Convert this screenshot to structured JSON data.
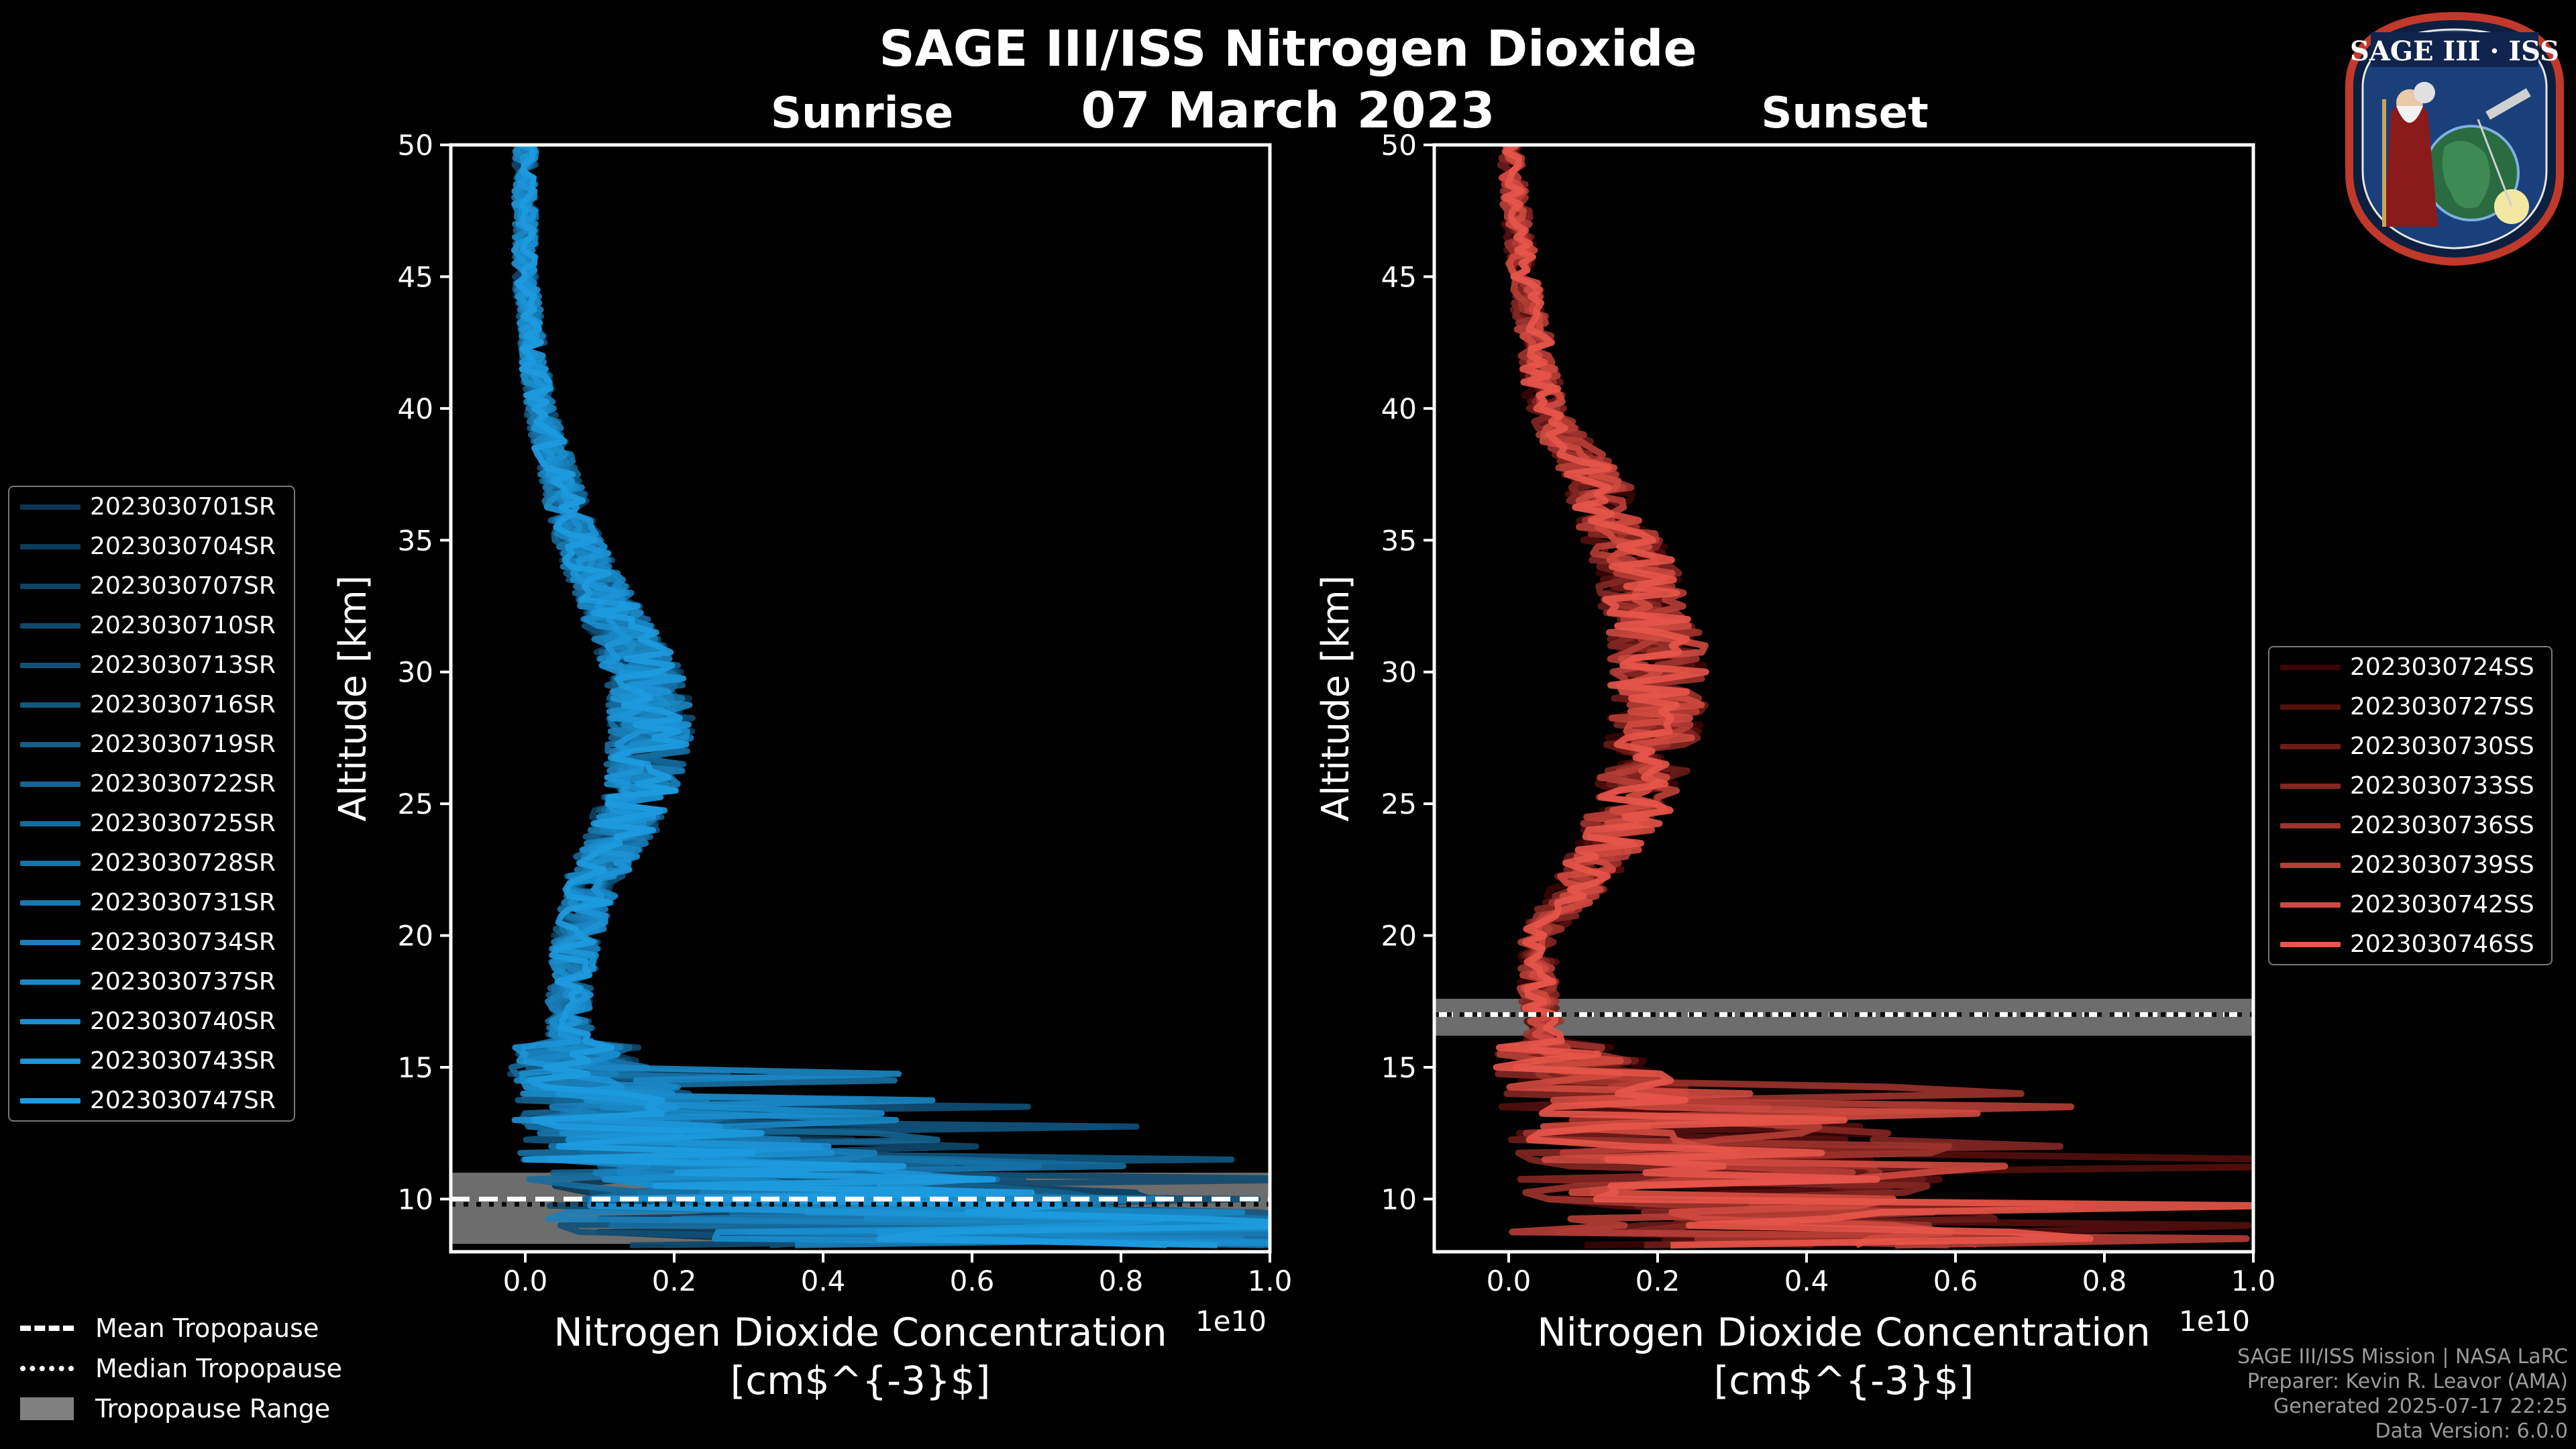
{
  "header": {
    "title": "SAGE III/ISS Nitrogen Dioxide",
    "date": "07 March 2023"
  },
  "logo": {
    "text": "SAGE III · ISS",
    "colors": {
      "ring": "#c0392b",
      "field": "#1b3f7a"
    }
  },
  "credits": [
    "SAGE III/ISS Mission | NASA LaRC",
    "Preparer: Kevin R. Leavor (AMA)",
    "Generated 2025-07-17 22:25",
    "Data Version: 6.0.0"
  ],
  "tropopause_legend": {
    "mean": "Mean Tropopause",
    "median": "Median Tropopause",
    "range": "Tropopause Range"
  },
  "chart_data": [
    {
      "type": "line",
      "title": "Sunrise",
      "xlabel": "Nitrogen Dioxide Concentration",
      "xunit": "[cm$^{-3}$]",
      "ylabel": "Altitude [km]",
      "x_scale_label": "1e10",
      "xlim": [
        -0.1,
        1.0
      ],
      "ylim": [
        8,
        50
      ],
      "xticks": [
        0.0,
        0.2,
        0.4,
        0.6,
        0.8,
        1.0
      ],
      "xtick_labels": [
        "0.0",
        "0.2",
        "0.4",
        "0.6",
        "0.8",
        "1.0"
      ],
      "yticks": [
        10,
        15,
        20,
        25,
        30,
        35,
        40,
        45,
        50
      ],
      "legend_position": "left",
      "color_dark": "#0b3552",
      "color_light": "#1e9be0",
      "tropopause": {
        "mean": 10.0,
        "median": 9.8,
        "range": [
          8.3,
          11.0
        ]
      },
      "profile_shape": [
        [
          50,
          0.0
        ],
        [
          45,
          0.0
        ],
        [
          40,
          0.02
        ],
        [
          35,
          0.07
        ],
        [
          32,
          0.12
        ],
        [
          30,
          0.16
        ],
        [
          28,
          0.17
        ],
        [
          26,
          0.16
        ],
        [
          24,
          0.13
        ],
        [
          22,
          0.09
        ],
        [
          20,
          0.07
        ],
        [
          18,
          0.06
        ],
        [
          16,
          0.06
        ],
        [
          14,
          0.1
        ],
        [
          12,
          0.2
        ],
        [
          10,
          0.45
        ],
        [
          8.5,
          0.7
        ]
      ],
      "series": [
        {
          "name": "2023030701SR"
        },
        {
          "name": "2023030704SR"
        },
        {
          "name": "2023030707SR"
        },
        {
          "name": "2023030710SR"
        },
        {
          "name": "2023030713SR"
        },
        {
          "name": "2023030716SR"
        },
        {
          "name": "2023030719SR"
        },
        {
          "name": "2023030722SR"
        },
        {
          "name": "2023030725SR"
        },
        {
          "name": "2023030728SR"
        },
        {
          "name": "2023030731SR"
        },
        {
          "name": "2023030734SR"
        },
        {
          "name": "2023030737SR"
        },
        {
          "name": "2023030740SR"
        },
        {
          "name": "2023030743SR"
        },
        {
          "name": "2023030747SR"
        }
      ]
    },
    {
      "type": "line",
      "title": "Sunset",
      "xlabel": "Nitrogen Dioxide Concentration",
      "xunit": "[cm$^{-3}$]",
      "ylabel": "Altitude [km]",
      "x_scale_label": "1e10",
      "xlim": [
        -0.1,
        1.0
      ],
      "ylim": [
        8,
        50
      ],
      "xticks": [
        0.0,
        0.2,
        0.4,
        0.6,
        0.8,
        1.0
      ],
      "xtick_labels": [
        "0.0",
        "0.2",
        "0.4",
        "0.6",
        "0.8",
        "1.0"
      ],
      "yticks": [
        10,
        15,
        20,
        25,
        30,
        35,
        40,
        45,
        50
      ],
      "legend_position": "right",
      "color_dark": "#3a0504",
      "color_light": "#e8554a",
      "tropopause": {
        "mean": 17.0,
        "median": 17.0,
        "range": [
          16.2,
          17.6
        ]
      },
      "profile_shape": [
        [
          50,
          0.0
        ],
        [
          45,
          0.02
        ],
        [
          40,
          0.05
        ],
        [
          37,
          0.12
        ],
        [
          34,
          0.17
        ],
        [
          31,
          0.2
        ],
        [
          28,
          0.2
        ],
        [
          25,
          0.17
        ],
        [
          22,
          0.1
        ],
        [
          20,
          0.04
        ],
        [
          18,
          0.04
        ],
        [
          16,
          0.05
        ],
        [
          14,
          0.15
        ],
        [
          12,
          0.3
        ],
        [
          10,
          0.3
        ],
        [
          8.5,
          0.35
        ]
      ],
      "series": [
        {
          "name": "2023030724SS"
        },
        {
          "name": "2023030727SS"
        },
        {
          "name": "2023030730SS"
        },
        {
          "name": "2023030733SS"
        },
        {
          "name": "2023030736SS"
        },
        {
          "name": "2023030739SS"
        },
        {
          "name": "2023030742SS"
        },
        {
          "name": "2023030746SS"
        }
      ]
    }
  ]
}
